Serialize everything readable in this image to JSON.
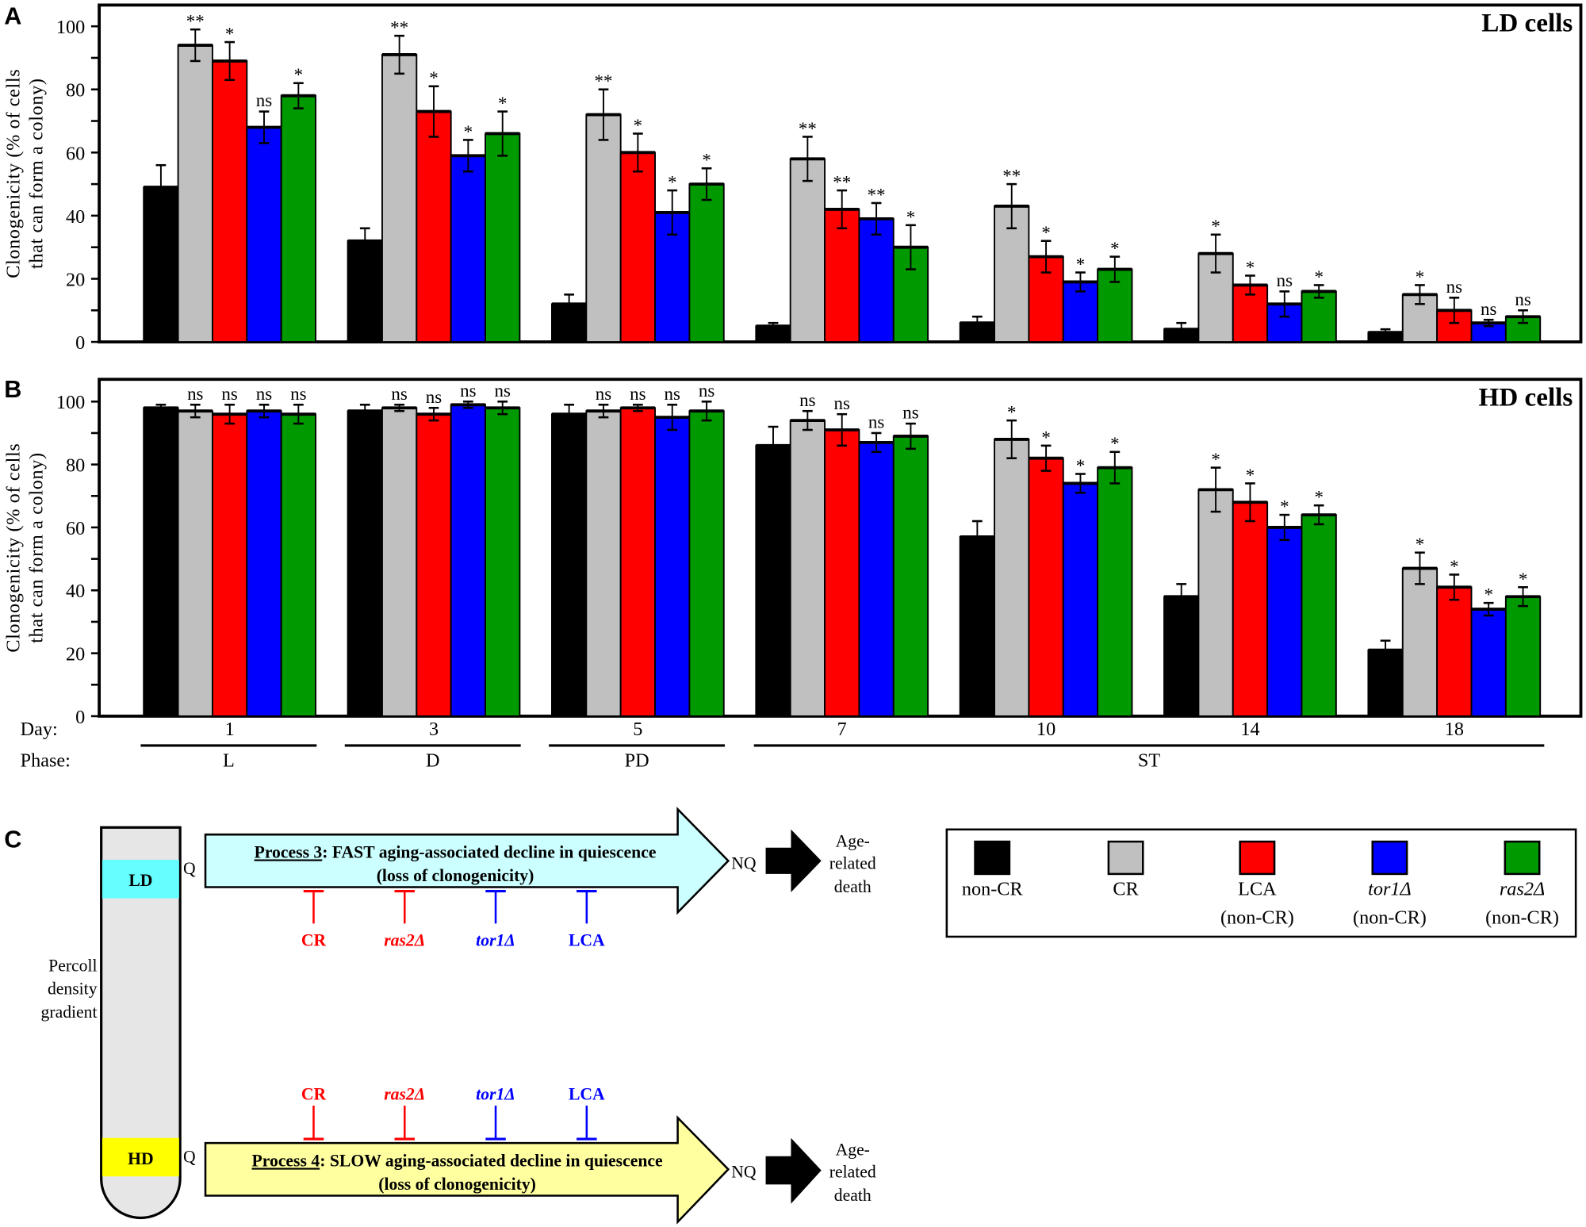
{
  "panels": {
    "a": "A",
    "b": "B",
    "c": "C"
  },
  "y_axis_label": [
    "Clonogenicity (% of cells",
    "that can form a colony)"
  ],
  "x_axis": {
    "day_label": "Day:",
    "phase_label": "Phase:",
    "days": [
      "1",
      "3",
      "5",
      "7",
      "10",
      "14",
      "18"
    ],
    "phases": [
      {
        "label": "L",
        "days": [
          "1"
        ]
      },
      {
        "label": "D",
        "days": [
          "3"
        ]
      },
      {
        "label": "PD",
        "days": [
          "5"
        ]
      },
      {
        "label": "ST",
        "days": [
          "7",
          "10",
          "14",
          "18"
        ]
      }
    ]
  },
  "colors": {
    "non-CR": "#000000",
    "CR": "#c0c0c0",
    "LCA": "#ff0000",
    "tor1": "#0000ff",
    "ras2": "#009900"
  },
  "chart_data": [
    {
      "type": "bar",
      "title": "LD cells",
      "ylabel": "Clonogenicity (% of cells that can form a colony)",
      "categories": [
        "1",
        "3",
        "5",
        "7",
        "10",
        "14",
        "18"
      ],
      "ylim": [
        0,
        100
      ],
      "yticks": [
        0,
        20,
        40,
        60,
        80,
        100
      ],
      "grid": false,
      "series": [
        {
          "name": "non-CR",
          "values": [
            49,
            32,
            12,
            5,
            6,
            4,
            3
          ],
          "errors": [
            7,
            4,
            3,
            1,
            2,
            2,
            1
          ],
          "significance": [
            "",
            "",
            "",
            "",
            "",
            "",
            ""
          ]
        },
        {
          "name": "CR",
          "values": [
            94,
            91,
            72,
            58,
            43,
            28,
            15
          ],
          "errors": [
            5,
            6,
            8,
            7,
            7,
            6,
            3
          ],
          "significance": [
            "**",
            "**",
            "**",
            "**",
            "**",
            "*",
            "*"
          ]
        },
        {
          "name": "LCA (non-CR)",
          "values": [
            89,
            73,
            60,
            42,
            27,
            18,
            10
          ],
          "errors": [
            6,
            8,
            6,
            6,
            5,
            3,
            4
          ],
          "significance": [
            "*",
            "*",
            "*",
            "**",
            "*",
            "*",
            "ns"
          ]
        },
        {
          "name": "tor1Δ (non-CR)",
          "values": [
            68,
            59,
            41,
            39,
            19,
            12,
            6
          ],
          "errors": [
            5,
            5,
            7,
            5,
            3,
            4,
            1
          ],
          "significance": [
            "ns",
            "*",
            "*",
            "**",
            "*",
            "ns",
            "ns"
          ]
        },
        {
          "name": "ras2Δ (non-CR)",
          "values": [
            78,
            66,
            50,
            30,
            23,
            16,
            8
          ],
          "errors": [
            4,
            7,
            5,
            7,
            4,
            2,
            2
          ],
          "significance": [
            "*",
            "*",
            "*",
            "*",
            "*",
            "*",
            "ns"
          ]
        }
      ]
    },
    {
      "type": "bar",
      "title": "HD cells",
      "ylabel": "Clonogenicity (% of cells that can form a colony)",
      "categories": [
        "1",
        "3",
        "5",
        "7",
        "10",
        "14",
        "18"
      ],
      "ylim": [
        0,
        100
      ],
      "yticks": [
        0,
        20,
        40,
        60,
        80,
        100
      ],
      "grid": false,
      "series": [
        {
          "name": "non-CR",
          "values": [
            98,
            97,
            96,
            86,
            57,
            38,
            21
          ],
          "errors": [
            1,
            2,
            3,
            6,
            5,
            4,
            3
          ],
          "significance": [
            "",
            "",
            "",
            "",
            "",
            "",
            ""
          ]
        },
        {
          "name": "CR",
          "values": [
            97,
            98,
            97,
            94,
            88,
            72,
            47
          ],
          "errors": [
            2,
            1,
            2,
            3,
            6,
            7,
            5
          ],
          "significance": [
            "ns",
            "ns",
            "ns",
            "ns",
            "*",
            "*",
            "*"
          ]
        },
        {
          "name": "LCA (non-CR)",
          "values": [
            96,
            96,
            98,
            91,
            82,
            68,
            41
          ],
          "errors": [
            3,
            2,
            1,
            5,
            4,
            6,
            4
          ],
          "significance": [
            "ns",
            "ns",
            "ns",
            "ns",
            "*",
            "*",
            "*"
          ]
        },
        {
          "name": "tor1Δ (non-CR)",
          "values": [
            97,
            99,
            95,
            87,
            74,
            60,
            34
          ],
          "errors": [
            2,
            1,
            4,
            3,
            3,
            4,
            2
          ],
          "significance": [
            "ns",
            "ns",
            "ns",
            "ns",
            "*",
            "*",
            "*"
          ]
        },
        {
          "name": "ras2Δ (non-CR)",
          "values": [
            96,
            98,
            97,
            89,
            79,
            64,
            38
          ],
          "errors": [
            3,
            2,
            3,
            4,
            5,
            3,
            3
          ],
          "significance": [
            "ns",
            "ns",
            "ns",
            "ns",
            "*",
            "*",
            "*"
          ]
        }
      ]
    }
  ],
  "legend": [
    {
      "line1": "non-CR",
      "line2": "",
      "italic": false,
      "color": "#000000"
    },
    {
      "line1": "CR",
      "line2": "",
      "italic": false,
      "color": "#c0c0c0"
    },
    {
      "line1": "LCA",
      "line2": "(non-CR)",
      "italic": false,
      "color": "#ff0000"
    },
    {
      "line1": "tor1Δ",
      "line2": "(non-CR)",
      "italic": true,
      "color": "#0000ff"
    },
    {
      "line1": "ras2Δ",
      "line2": "(non-CR)",
      "italic": true,
      "color": "#009900"
    }
  ],
  "diagram": {
    "tube_label": [
      "Percoll",
      "density",
      "gradient"
    ],
    "ld_band": {
      "label": "LD",
      "color": "#66ffff"
    },
    "hd_band": {
      "label": "HD",
      "color": "#ffff00"
    },
    "q_label": "Q",
    "nq_label": "NQ",
    "outcome": [
      "Age-",
      "related",
      "death"
    ],
    "process3": {
      "name": "Process 3",
      "text": ": FAST aging-associated decline in quiescence",
      "line2": "(loss of clonogenicity)",
      "color": "#ccffff"
    },
    "process4": {
      "name": "Process 4",
      "text": ": SLOW aging-associated decline in quiescence",
      "line2": "(loss of clonogenicity)",
      "color": "#ffffa0"
    },
    "inhibitors": [
      {
        "label": "CR",
        "italic": false,
        "color": "#ff0000"
      },
      {
        "label": "ras2Δ",
        "italic": true,
        "color": "#ff0000"
      },
      {
        "label": "tor1Δ",
        "italic": true,
        "color": "#0000ff"
      },
      {
        "label": "LCA",
        "italic": false,
        "color": "#0000ff"
      }
    ]
  }
}
